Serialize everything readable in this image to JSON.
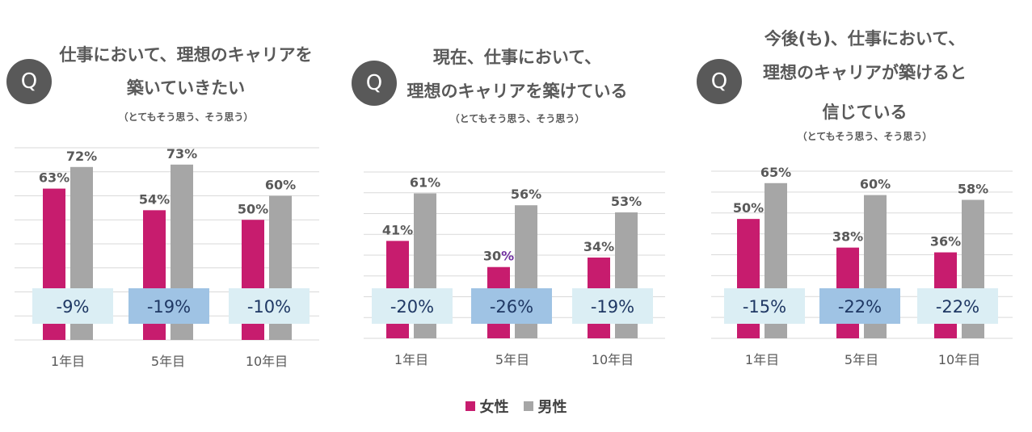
{
  "colors": {
    "female": "#c71c6e",
    "male": "#a6a6a6",
    "gap_light": "#dbeef4",
    "gap_dark": "#9fc3e4",
    "gap_text": "#1f3864",
    "purple_pct": "#7030a0",
    "text": "#595959",
    "grid": "#d9d9d9"
  },
  "legend": {
    "female": "女性",
    "male": "男性"
  },
  "charts": [
    {
      "q": "Q",
      "title_lines": [
        "仕事において、理想のキャリアを",
        "築いていきたい"
      ],
      "subtitle": "（とてもそう思う、そう思う）"
    },
    {
      "q": "Q",
      "title_lines": [
        "現在、仕事において、",
        "理想のキャリアを築けている"
      ],
      "subtitle": "（とてもそう思う、そう思う）"
    },
    {
      "q": "Q",
      "title_lines": [
        "今後(も)、仕事において、",
        "理想のキャリアが築けると",
        "信じている"
      ],
      "subtitle": "（とてもそう思う、そう思う）"
    }
  ],
  "chart_data": [
    {
      "type": "bar",
      "title": "仕事において、理想のキャリアを築いていきたい",
      "categories": [
        "1年目",
        "5年目",
        "10年目"
      ],
      "series": [
        {
          "name": "女性",
          "values": [
            63,
            54,
            50
          ],
          "labels": [
            "63%",
            "54%",
            "50%"
          ]
        },
        {
          "name": "男性",
          "values": [
            72,
            73,
            60
          ],
          "labels": [
            "72%",
            "73%",
            "60%"
          ]
        }
      ],
      "gaps": [
        "-9%",
        "-19%",
        "-10%"
      ],
      "highlight_gap_index": 1,
      "ylim": [
        0,
        80
      ]
    },
    {
      "type": "bar",
      "title": "現在、仕事において、理想のキャリアを築けている",
      "categories": [
        "1年目",
        "5年目",
        "10年目"
      ],
      "series": [
        {
          "name": "女性",
          "values": [
            41,
            30,
            34
          ],
          "labels": [
            "41%",
            "30",
            "34%"
          ]
        },
        {
          "name": "男性",
          "values": [
            61,
            56,
            53
          ],
          "labels": [
            "61%",
            "56%",
            "53%"
          ]
        }
      ],
      "purple_suffix": "%",
      "gaps": [
        "-20%",
        "-26%",
        "-19%"
      ],
      "highlight_gap_index": 1,
      "ylim": [
        0,
        70
      ]
    },
    {
      "type": "bar",
      "title": "今後(も)、仕事において、理想のキャリアが築けると信じている",
      "categories": [
        "1年目",
        "5年目",
        "10年目"
      ],
      "series": [
        {
          "name": "女性",
          "values": [
            50,
            38,
            36
          ],
          "labels": [
            "50%",
            "38%",
            "36%"
          ]
        },
        {
          "name": "男性",
          "values": [
            65,
            60,
            58
          ],
          "labels": [
            "65%",
            "60%",
            "58%"
          ]
        }
      ],
      "gaps": [
        "-15%",
        "-22%",
        "-22%"
      ],
      "highlight_gap_index": 1,
      "ylim": [
        0,
        70
      ]
    }
  ]
}
